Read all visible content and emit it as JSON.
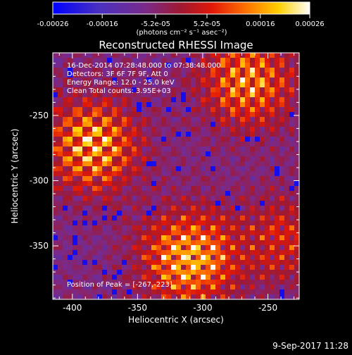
{
  "colorbar": {
    "ticks": [
      "-0.00026",
      "-0.00016",
      "-5.2e-05",
      "5.2e-05",
      "0.00016",
      "0.00026"
    ],
    "tick_values": [
      -0.00026,
      -0.00016,
      -5.2e-05,
      5.2e-05,
      0.00016,
      0.00026
    ],
    "range": [
      -0.00026,
      0.00026
    ],
    "unit_label": "(photons cm⁻² s⁻¹ asec⁻²)",
    "colors": [
      "#0000ff",
      "#5a2cb0",
      "#7a2a8a",
      "#c01818",
      "#ff3a00",
      "#ff8a00",
      "#ffd800",
      "#ffffff"
    ]
  },
  "chart_data": {
    "type": "heatmap",
    "title": "Reconstructed RHESSI Image",
    "xlabel": "Heliocentric X (arcsec)",
    "ylabel": "Heliocentric Y (arcsec)",
    "xlim": [
      -415,
      -226
    ],
    "ylim": [
      -391,
      -202
    ],
    "xticks": [
      "-400",
      "-350",
      "-300",
      "-250"
    ],
    "xtick_values": [
      -400,
      -350,
      -300,
      -250
    ],
    "yticks": [
      "-250",
      "-300",
      "-350"
    ],
    "ytick_values": [
      -250,
      -300,
      -350
    ],
    "info_lines": [
      "16-Dec-2014 07:28:48.000 to 07:38:48.000",
      "Detectors: 3F 6F 7F 9F, Att 0",
      "Energy Range: 12.0 - 25.0 keV",
      "Clean     Total counts: 3.95E+03"
    ],
    "peak_label": "Position of Peak = [-267,-223]",
    "peak_position": [
      -267,
      -223
    ],
    "bright_regions": [
      {
        "center": [
          -385,
          -273
        ],
        "strength": 0.9
      },
      {
        "center": [
          -310,
          -360
        ],
        "strength": 1.0
      },
      {
        "center": [
          -265,
          -224
        ],
        "strength": 0.8
      },
      {
        "center": [
          -237,
          -345
        ],
        "strength": 0.45
      }
    ]
  },
  "footer": {
    "date": "9-Sep-2017 11:28"
  }
}
